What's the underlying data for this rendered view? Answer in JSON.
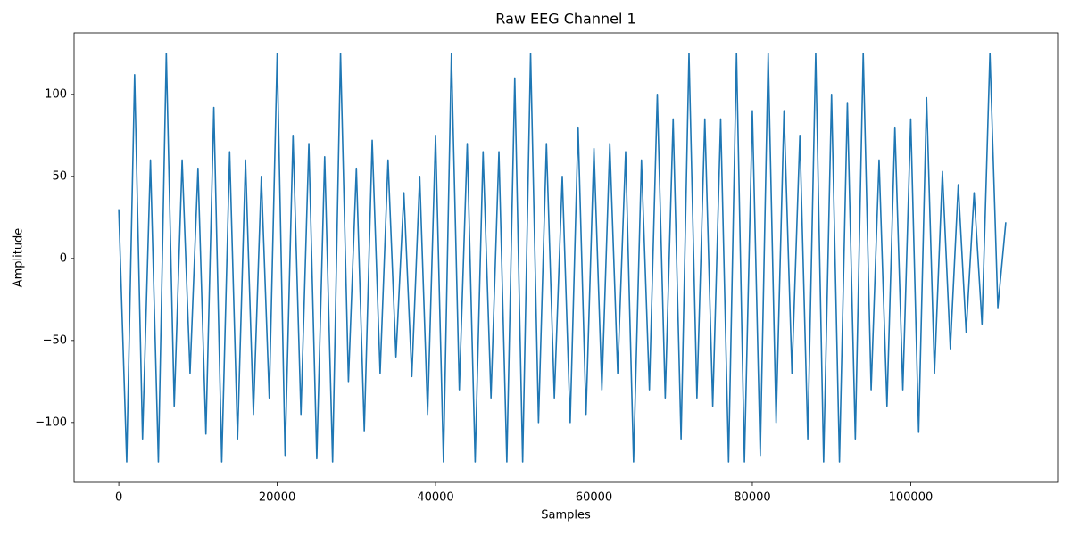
{
  "chart_data": {
    "type": "line",
    "title": "Raw EEG Channel 1",
    "xlabel": "Samples",
    "ylabel": "Amplitude",
    "x": [
      0,
      1000,
      2000,
      3000,
      4000,
      5000,
      6000,
      7000,
      8000,
      9000,
      10000,
      11000,
      12000,
      13000,
      14000,
      15000,
      16000,
      17000,
      18000,
      19000,
      20000,
      21000,
      22000,
      23000,
      24000,
      25000,
      26000,
      27000,
      28000,
      29000,
      30000,
      31000,
      32000,
      33000,
      34000,
      35000,
      36000,
      37000,
      38000,
      39000,
      40000,
      41000,
      42000,
      43000,
      44000,
      45000,
      46000,
      47000,
      48000,
      49000,
      50000,
      51000,
      52000,
      53000,
      54000,
      55000,
      56000,
      57000,
      58000,
      59000,
      60000,
      61000,
      62000,
      63000,
      64000,
      65000,
      66000,
      67000,
      68000,
      69000,
      70000,
      71000,
      72000,
      73000,
      74000,
      75000,
      76000,
      77000,
      78000,
      79000,
      80000,
      81000,
      82000,
      83000,
      84000,
      85000,
      86000,
      87000,
      88000,
      89000,
      90000,
      91000,
      92000,
      93000,
      94000,
      95000,
      96000,
      97000,
      98000,
      99000,
      100000,
      101000,
      102000,
      103000,
      104000,
      105000,
      106000,
      107000,
      108000,
      109000,
      110000,
      111000,
      112000
    ],
    "series": [
      {
        "name": "Channel 1",
        "color": "#1f77b4",
        "values": [
          30,
          -124,
          112,
          -110,
          60,
          -124,
          125,
          -90,
          60,
          -70,
          55,
          -107,
          92,
          -124,
          65,
          -110,
          60,
          -95,
          50,
          -85,
          125,
          -120,
          75,
          -95,
          70,
          -122,
          62,
          -124,
          125,
          -75,
          55,
          -105,
          72,
          -70,
          60,
          -60,
          40,
          -72,
          50,
          -95,
          75,
          -124,
          125,
          -80,
          70,
          -124,
          65,
          -85,
          65,
          -124,
          110,
          -124,
          125,
          -100,
          70,
          -85,
          50,
          -100,
          80,
          -95,
          67,
          -80,
          70,
          -70,
          65,
          -124,
          60,
          -80,
          100,
          -85,
          85,
          -110,
          125,
          -85,
          85,
          -90,
          85,
          -124,
          125,
          -124,
          90,
          -120,
          125,
          -100,
          90,
          -70,
          75,
          -110,
          125,
          -124,
          100,
          -124,
          95,
          -110,
          125,
          -80,
          60,
          -90,
          80,
          -80,
          85,
          -106,
          98,
          -70,
          53,
          -55,
          45,
          -45,
          40,
          -40,
          125,
          -30,
          22
        ]
      }
    ],
    "xlim": [
      -5645,
      118545
    ],
    "ylim": [
      -136.5,
      137.4
    ],
    "xticks": [
      0,
      20000,
      40000,
      60000,
      80000,
      100000
    ],
    "yticks": [
      {
        "value": -100,
        "label": "−100"
      },
      {
        "value": -50,
        "label": "−50"
      },
      0,
      50,
      100
    ],
    "grid": false
  }
}
